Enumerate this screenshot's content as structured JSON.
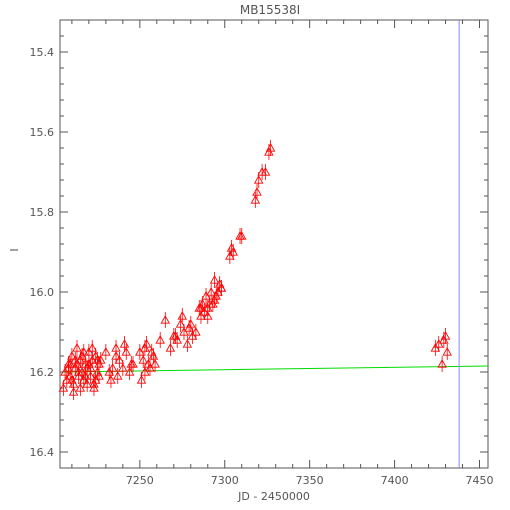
{
  "chart_data": {
    "type": "scatter",
    "title": "MB15538I",
    "xlabel": "JD - 2450000",
    "ylabel": "I",
    "xlim": [
      7203,
      7455
    ],
    "ylim": [
      16.44,
      15.32
    ],
    "y_inverted": true,
    "x_ticks": [
      7250,
      7300,
      7350,
      7400,
      7450
    ],
    "y_ticks": [
      15.4,
      15.6,
      15.8,
      16.0,
      16.2,
      16.4
    ],
    "x_tick_labels": [
      "7250",
      "7300",
      "7350",
      "7400",
      "7450"
    ],
    "y_tick_labels": [
      "15.4",
      "15.6",
      "15.8",
      "16.0",
      "16.2",
      "16.4"
    ],
    "grid": false,
    "colors": {
      "data": "#ff0000",
      "model": "#00dd00",
      "marker_line": "#8888ff",
      "axes": "#555555"
    },
    "marker": "triangle-open",
    "series": [
      {
        "kind": "points",
        "x": [
          7205,
          7206,
          7207,
          7208,
          7209,
          7210,
          7211,
          7212,
          7213,
          7214,
          7215,
          7216,
          7217,
          7218,
          7219,
          7220,
          7221,
          7222,
          7223,
          7224,
          7225,
          7226,
          7208,
          7210,
          7212,
          7214,
          7216,
          7218,
          7220,
          7222,
          7224,
          7211,
          7215,
          7219,
          7223,
          7213,
          7217,
          7221,
          7225,
          7209,
          7226,
          7227,
          7230,
          7232,
          7234,
          7236,
          7238,
          7240,
          7242,
          7244,
          7246,
          7233,
          7237,
          7241,
          7245,
          7236,
          7250,
          7252,
          7254,
          7256,
          7258,
          7251,
          7253,
          7255,
          7257,
          7253,
          7259,
          7262,
          7265,
          7268,
          7270,
          7272,
          7274,
          7276,
          7278,
          7280,
          7271,
          7275,
          7279,
          7281,
          7283,
          7285,
          7286,
          7287,
          7288,
          7289,
          7290,
          7291,
          7292,
          7293,
          7294,
          7295,
          7296,
          7297,
          7298,
          7286,
          7290,
          7294,
          7298,
          7303,
          7304,
          7305,
          7309,
          7310,
          7318,
          7319,
          7320,
          7322,
          7324,
          7326,
          7327,
          7424,
          7426,
          7428,
          7429,
          7430,
          7431
        ],
        "y": [
          16.24,
          16.2,
          16.22,
          16.18,
          16.21,
          16.16,
          16.23,
          16.19,
          16.14,
          16.21,
          16.17,
          16.2,
          16.22,
          16.18,
          16.19,
          16.15,
          16.21,
          16.17,
          16.23,
          16.16,
          16.2,
          16.18,
          16.19,
          16.22,
          16.17,
          16.2,
          16.16,
          16.21,
          16.18,
          16.14,
          16.22,
          16.25,
          16.24,
          16.23,
          16.24,
          16.18,
          16.15,
          16.19,
          16.17,
          16.18,
          16.21,
          16.17,
          16.15,
          16.2,
          16.19,
          16.14,
          16.17,
          16.19,
          16.15,
          16.2,
          16.18,
          16.22,
          16.21,
          16.13,
          16.18,
          16.16,
          16.15,
          16.17,
          16.13,
          16.19,
          16.16,
          16.22,
          16.14,
          16.18,
          16.15,
          16.2,
          16.18,
          16.12,
          16.07,
          16.14,
          16.11,
          16.12,
          16.08,
          16.1,
          16.13,
          16.08,
          16.11,
          16.06,
          16.09,
          16.11,
          16.1,
          16.04,
          16.06,
          16.03,
          16.05,
          16.01,
          16.06,
          16.03,
          16.0,
          16.03,
          15.97,
          16.01,
          16.0,
          15.98,
          15.99,
          16.04,
          16.04,
          16.02,
          15.99,
          15.91,
          15.89,
          15.9,
          15.86,
          15.86,
          15.77,
          15.75,
          15.72,
          15.7,
          15.7,
          15.65,
          15.64,
          16.14,
          16.13,
          16.18,
          16.12,
          16.11,
          16.15
        ],
        "errors": [
          0.02,
          0.02,
          0.02,
          0.02,
          0.02,
          0.02,
          0.02,
          0.02,
          0.02,
          0.02,
          0.02,
          0.02,
          0.02,
          0.02,
          0.02,
          0.02,
          0.02,
          0.02,
          0.02,
          0.02,
          0.02,
          0.02,
          0.02,
          0.02,
          0.02,
          0.02,
          0.02,
          0.02,
          0.02,
          0.02,
          0.02,
          0.02,
          0.02,
          0.02,
          0.02,
          0.02,
          0.02,
          0.02,
          0.02,
          0.02,
          0.02,
          0.02,
          0.02,
          0.02,
          0.02,
          0.02,
          0.02,
          0.02,
          0.02,
          0.02,
          0.02,
          0.02,
          0.02,
          0.02,
          0.02,
          0.02,
          0.02,
          0.02,
          0.02,
          0.02,
          0.02,
          0.02,
          0.02,
          0.02,
          0.02,
          0.02,
          0.02,
          0.02,
          0.02,
          0.02,
          0.02,
          0.02,
          0.02,
          0.02,
          0.02,
          0.02,
          0.02,
          0.02,
          0.02,
          0.02,
          0.02,
          0.02,
          0.02,
          0.02,
          0.02,
          0.02,
          0.02,
          0.02,
          0.02,
          0.02,
          0.02,
          0.02,
          0.02,
          0.02,
          0.02,
          0.02,
          0.02,
          0.02,
          0.02,
          0.02,
          0.02,
          0.02,
          0.02,
          0.02,
          0.02,
          0.02,
          0.02,
          0.02,
          0.02,
          0.02,
          0.02,
          0.02,
          0.02,
          0.02,
          0.02,
          0.02,
          0.02
        ]
      },
      {
        "kind": "line",
        "x": [
          7205,
          7455
        ],
        "y": [
          16.2,
          16.185
        ]
      }
    ],
    "vertical_line_x": 7438
  }
}
